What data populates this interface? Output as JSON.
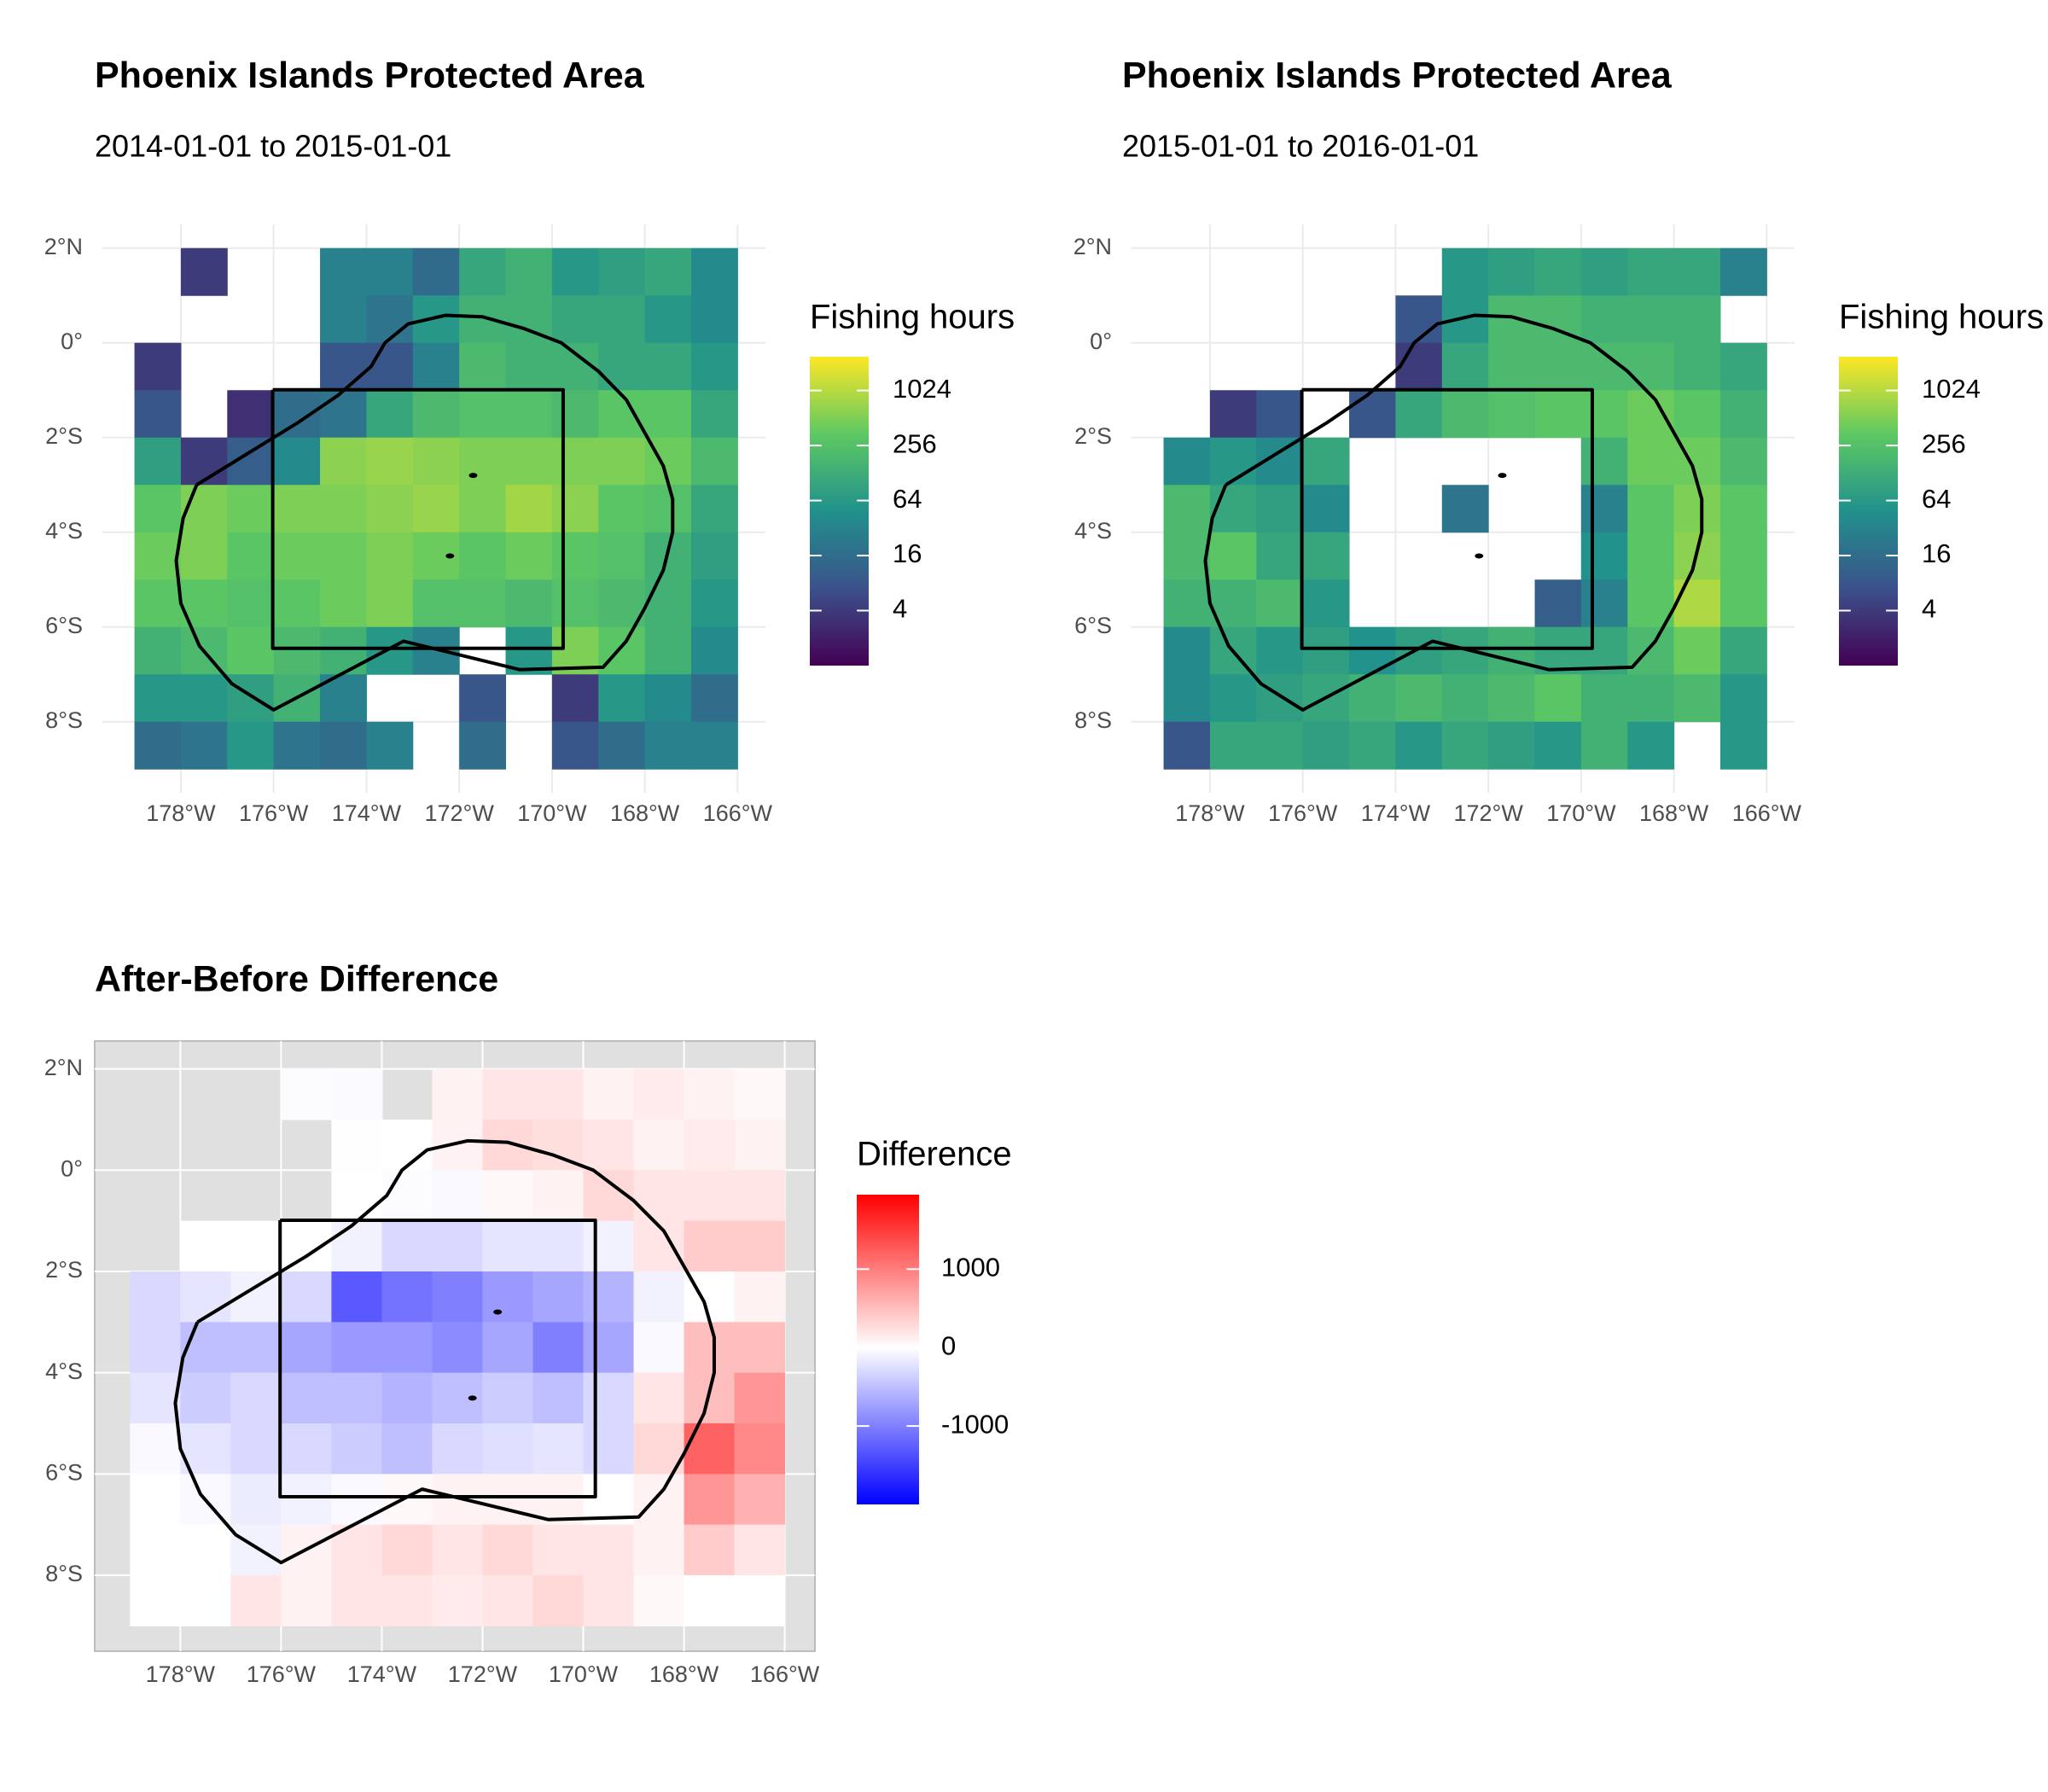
{
  "chart_data": [
    {
      "type": "heatmap",
      "title": "Phoenix Islands Protected Area",
      "subtitle": "2014-01-01 to 2015-01-01",
      "x": [
        -178.5,
        -177.5,
        -176.5,
        -175.5,
        -174.5,
        -173.5,
        -172.5,
        -171.5,
        -170.5,
        -169.5,
        -168.5,
        -167.5,
        -166.5
      ],
      "y": [
        1.5,
        0.5,
        -0.5,
        -1.5,
        -2.5,
        -3.5,
        -4.5,
        -5.5,
        -6.5,
        -7.5,
        -8.5
      ],
      "z": [
        [
          null,
          4,
          null,
          null,
          30,
          30,
          15,
          100,
          150,
          60,
          80,
          100,
          40
        ],
        [
          null,
          null,
          null,
          null,
          30,
          20,
          60,
          150,
          150,
          100,
          100,
          60,
          40
        ],
        [
          4,
          null,
          null,
          null,
          8,
          8,
          30,
          200,
          150,
          150,
          100,
          100,
          60
        ],
        [
          8,
          null,
          3,
          16,
          20,
          100,
          200,
          250,
          250,
          200,
          300,
          300,
          100
        ],
        [
          80,
          4,
          10,
          40,
          600,
          700,
          600,
          500,
          500,
          500,
          500,
          400,
          200
        ],
        [
          300,
          500,
          400,
          500,
          500,
          600,
          700,
          500,
          800,
          600,
          300,
          250,
          100
        ],
        [
          400,
          500,
          300,
          400,
          400,
          500,
          400,
          300,
          400,
          300,
          250,
          150,
          80
        ],
        [
          300,
          300,
          250,
          300,
          400,
          500,
          250,
          250,
          200,
          250,
          200,
          150,
          60
        ],
        [
          150,
          200,
          300,
          200,
          150,
          60,
          30,
          null,
          60,
          500,
          300,
          150,
          40
        ],
        [
          60,
          60,
          80,
          150,
          30,
          null,
          null,
          8,
          null,
          4,
          60,
          40,
          16
        ],
        [
          16,
          20,
          60,
          20,
          16,
          30,
          null,
          16,
          null,
          8,
          16,
          30,
          30
        ]
      ],
      "xlim": [
        -179.7,
        -165.4
      ],
      "ylim": [
        -9.5,
        2.5
      ],
      "xticks": [
        {
          "value": -178,
          "label": "178°W"
        },
        {
          "value": -176,
          "label": "176°W"
        },
        {
          "value": -174,
          "label": "174°W"
        },
        {
          "value": -172,
          "label": "172°W"
        },
        {
          "value": -170,
          "label": "170°W"
        },
        {
          "value": -168,
          "label": "168°W"
        },
        {
          "value": -166,
          "label": "166°W"
        }
      ],
      "yticks": [
        {
          "value": 2,
          "label": "2°N"
        },
        {
          "value": 0,
          "label": "0°"
        },
        {
          "value": -2,
          "label": "2°S"
        },
        {
          "value": -4,
          "label": "4°S"
        },
        {
          "value": -6,
          "label": "6°S"
        },
        {
          "value": -8,
          "label": "8°S"
        }
      ],
      "grid": true,
      "grid_color": "#ebebeb",
      "colorbar": {
        "title": "Fishing hours",
        "log": true,
        "lim": [
          1,
          2400
        ],
        "ticks": [
          4,
          16,
          64,
          256,
          1024
        ],
        "colors": [
          "#440154",
          "#3b528b",
          "#21918c",
          "#5ec962",
          "#fde725"
        ]
      }
    },
    {
      "type": "heatmap",
      "title": "Phoenix Islands Protected Area",
      "subtitle": "2015-01-01 to 2016-01-01",
      "x": [
        -178.5,
        -177.5,
        -176.5,
        -175.5,
        -174.5,
        -173.5,
        -172.5,
        -171.5,
        -170.5,
        -169.5,
        -168.5,
        -167.5,
        -166.5
      ],
      "y": [
        1.5,
        0.5,
        -0.5,
        -1.5,
        -2.5,
        -3.5,
        -4.5,
        -5.5,
        -6.5,
        -7.5,
        -8.5
      ],
      "z": [
        [
          null,
          null,
          null,
          null,
          null,
          null,
          60,
          80,
          100,
          80,
          100,
          100,
          30
        ],
        [
          null,
          null,
          null,
          null,
          null,
          8,
          60,
          200,
          200,
          150,
          150,
          150,
          null
        ],
        [
          null,
          null,
          null,
          null,
          null,
          4,
          100,
          200,
          200,
          200,
          200,
          150,
          100
        ],
        [
          null,
          4,
          8,
          null,
          8,
          100,
          200,
          250,
          300,
          300,
          400,
          300,
          150
        ],
        [
          40,
          60,
          40,
          100,
          null,
          null,
          null,
          null,
          null,
          150,
          400,
          400,
          200
        ],
        [
          200,
          100,
          80,
          40,
          null,
          null,
          20,
          null,
          null,
          30,
          300,
          500,
          300
        ],
        [
          200,
          300,
          100,
          100,
          null,
          null,
          null,
          null,
          null,
          50,
          300,
          600,
          300
        ],
        [
          150,
          150,
          200,
          60,
          null,
          null,
          null,
          null,
          10,
          30,
          300,
          900,
          300
        ],
        [
          40,
          100,
          60,
          80,
          50,
          80,
          100,
          150,
          100,
          100,
          200,
          400,
          100
        ],
        [
          40,
          60,
          80,
          100,
          150,
          200,
          150,
          200,
          300,
          150,
          150,
          200,
          60
        ],
        [
          8,
          100,
          100,
          80,
          100,
          60,
          100,
          80,
          60,
          150,
          60,
          null,
          60
        ]
      ],
      "xlim": [
        -179.7,
        -165.4
      ],
      "ylim": [
        -9.5,
        2.5
      ],
      "xticks": [
        {
          "value": -178,
          "label": "178°W"
        },
        {
          "value": -176,
          "label": "176°W"
        },
        {
          "value": -174,
          "label": "174°W"
        },
        {
          "value": -172,
          "label": "172°W"
        },
        {
          "value": -170,
          "label": "170°W"
        },
        {
          "value": -168,
          "label": "168°W"
        },
        {
          "value": -166,
          "label": "166°W"
        }
      ],
      "yticks": [
        {
          "value": 2,
          "label": "2°N"
        },
        {
          "value": 0,
          "label": "0°"
        },
        {
          "value": -2,
          "label": "2°S"
        },
        {
          "value": -4,
          "label": "4°S"
        },
        {
          "value": -6,
          "label": "6°S"
        },
        {
          "value": -8,
          "label": "8°S"
        }
      ],
      "grid": true,
      "grid_color": "#ebebeb",
      "colorbar": {
        "title": "Fishing hours",
        "log": true,
        "lim": [
          1,
          2400
        ],
        "ticks": [
          4,
          16,
          64,
          256,
          1024
        ],
        "colors": [
          "#440154",
          "#3b528b",
          "#21918c",
          "#5ec962",
          "#fde725"
        ]
      }
    },
    {
      "type": "heatmap",
      "title": "After-Before Difference",
      "x": [
        -178.5,
        -177.5,
        -176.5,
        -175.5,
        -174.5,
        -173.5,
        -172.5,
        -171.5,
        -170.5,
        -169.5,
        -168.5,
        -167.5,
        -166.5
      ],
      "y": [
        1.5,
        0.5,
        -0.5,
        -1.5,
        -2.5,
        -3.5,
        -4.5,
        -5.5,
        -6.5,
        -7.5,
        -8.5
      ],
      "z": [
        [
          null,
          null,
          null,
          -20,
          -30,
          null,
          100,
          200,
          200,
          100,
          150,
          100,
          50
        ],
        [
          null,
          null,
          null,
          null,
          -10,
          0,
          100,
          300,
          250,
          200,
          100,
          150,
          100
        ],
        [
          null,
          null,
          null,
          null,
          0,
          -20,
          -50,
          50,
          100,
          300,
          200,
          200,
          200
        ],
        [
          null,
          0,
          0,
          0,
          -100,
          -300,
          -300,
          -200,
          -200,
          -100,
          200,
          400,
          400
        ],
        [
          -300,
          -200,
          -100,
          -300,
          -1300,
          -1100,
          -1000,
          -800,
          -700,
          -600,
          -100,
          0,
          100
        ],
        [
          -300,
          -500,
          -500,
          -700,
          -800,
          -800,
          -900,
          -700,
          -1000,
          -700,
          -50,
          500,
          500
        ],
        [
          -200,
          -400,
          -300,
          -500,
          -500,
          -600,
          -500,
          -400,
          -500,
          -300,
          200,
          500,
          800
        ],
        [
          -50,
          -200,
          -300,
          -300,
          -400,
          -500,
          -300,
          -250,
          -200,
          -300,
          300,
          1200,
          900
        ],
        [
          0,
          -50,
          -150,
          -100,
          -50,
          50,
          100,
          100,
          100,
          0,
          100,
          800,
          600
        ],
        [
          0,
          0,
          -100,
          100,
          200,
          300,
          200,
          300,
          200,
          200,
          100,
          400,
          200
        ],
        [
          0,
          0,
          200,
          100,
          200,
          200,
          150,
          200,
          300,
          200,
          50,
          0,
          0
        ]
      ],
      "xlim": [
        -179.7,
        -165.4
      ],
      "ylim": [
        -9.5,
        2.55
      ],
      "xticks": [
        {
          "value": -178,
          "label": "178°W"
        },
        {
          "value": -176,
          "label": "176°W"
        },
        {
          "value": -174,
          "label": "174°W"
        },
        {
          "value": -172,
          "label": "172°W"
        },
        {
          "value": -170,
          "label": "170°W"
        },
        {
          "value": -168,
          "label": "168°W"
        },
        {
          "value": -166,
          "label": "166°W"
        }
      ],
      "yticks": [
        {
          "value": 2,
          "label": "2°N"
        },
        {
          "value": 0,
          "label": "0°"
        },
        {
          "value": -2,
          "label": "2°S"
        },
        {
          "value": -4,
          "label": "4°S"
        },
        {
          "value": -6,
          "label": "6°S"
        },
        {
          "value": -8,
          "label": "8°S"
        }
      ],
      "grid": true,
      "grid_color": "#ffffff",
      "panel_background": "#e0e0e0",
      "colorbar": {
        "title": "Difference",
        "log": false,
        "lim": [
          -2000,
          1950
        ],
        "mid": 0,
        "ticks": [
          -1000,
          0,
          1000
        ],
        "colors": [
          "#0000ff",
          "#ffffff",
          "#ff0000"
        ]
      }
    }
  ],
  "outline": {
    "boundary": [
      [
        [
          -177.66,
          -3.0
        ],
        [
          -176.5,
          -2.3
        ],
        [
          -175.5,
          -1.7
        ],
        [
          -174.6,
          -1.1
        ],
        [
          -173.9,
          -0.5
        ],
        [
          -173.6,
          0.0
        ],
        [
          -173.1,
          0.4
        ],
        [
          -172.3,
          0.58
        ],
        [
          -171.5,
          0.55
        ],
        [
          -170.6,
          0.3
        ],
        [
          -169.8,
          0.0
        ],
        [
          -169.0,
          -0.6
        ],
        [
          -168.4,
          -1.2
        ],
        [
          -168.0,
          -1.9
        ],
        [
          -167.6,
          -2.6
        ],
        [
          -167.4,
          -3.3
        ],
        [
          -167.4,
          -4.0
        ],
        [
          -167.6,
          -4.8
        ],
        [
          -168.0,
          -5.6
        ],
        [
          -168.4,
          -6.3
        ],
        [
          -168.9,
          -6.85
        ],
        [
          -170.7,
          -6.9
        ],
        [
          -173.2,
          -6.3
        ],
        [
          -176.0,
          -7.75
        ],
        [
          -176.9,
          -7.2
        ],
        [
          -177.6,
          -6.4
        ],
        [
          -178.0,
          -5.5
        ],
        [
          -178.1,
          -4.6
        ],
        [
          -177.95,
          -3.7
        ],
        [
          -177.66,
          -3.0
        ]
      ],
      [
        [
          -176.02,
          -0.99
        ],
        [
          -169.76,
          -0.99
        ],
        [
          -169.76,
          -6.45
        ],
        [
          -176.02,
          -6.45
        ],
        [
          -176.02,
          -0.99
        ]
      ]
    ],
    "islands": [
      [
        -171.7,
        -2.8
      ],
      [
        -172.2,
        -4.5
      ]
    ]
  }
}
